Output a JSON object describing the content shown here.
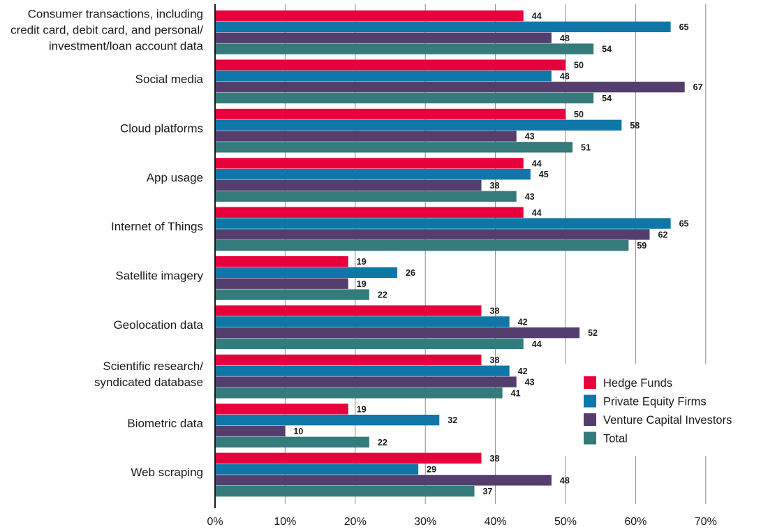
{
  "chart_data": {
    "type": "bar",
    "orientation": "horizontal",
    "title": "",
    "xlabel": "",
    "ylabel": "",
    "xlim": [
      0,
      70
    ],
    "x_ticks": [
      "0%",
      "10%",
      "20%",
      "30%",
      "40%",
      "50%",
      "60%",
      "70%"
    ],
    "x_tick_values": [
      0,
      10,
      20,
      30,
      40,
      50,
      60,
      70
    ],
    "grid": "vertical",
    "legend_position": "bottom-right",
    "categories": [
      [
        "Consumer transactions, including",
        "credit card, debit card, and personal/",
        "investment/loan account data"
      ],
      [
        "Social media"
      ],
      [
        "Cloud platforms"
      ],
      [
        "App usage"
      ],
      [
        "Internet of Things"
      ],
      [
        "Satellite imagery"
      ],
      [
        "Geolocation data"
      ],
      [
        "Scientific research/",
        "syndicated database"
      ],
      [
        "Biometric data"
      ],
      [
        "Web scraping"
      ]
    ],
    "series": [
      {
        "name": "Hedge Funds",
        "color": "#e8003d",
        "values": [
          44,
          50,
          50,
          44,
          44,
          19,
          38,
          38,
          19,
          38
        ]
      },
      {
        "name": "Private Equity Firms",
        "color": "#0f76a8",
        "values": [
          65,
          48,
          58,
          45,
          65,
          26,
          42,
          42,
          32,
          29
        ]
      },
      {
        "name": "Venture Capital Investors",
        "color": "#533e6e",
        "values": [
          48,
          67,
          43,
          38,
          62,
          19,
          52,
          43,
          10,
          48
        ]
      },
      {
        "name": "Total",
        "color": "#357b7b",
        "values": [
          54,
          54,
          51,
          43,
          59,
          22,
          44,
          41,
          22,
          37
        ]
      }
    ]
  }
}
